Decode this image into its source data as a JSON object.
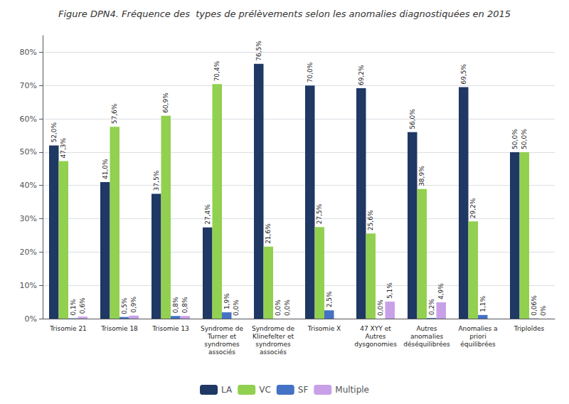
{
  "chart_data": {
    "type": "bar",
    "title": "Figure DPN4. Fréquence des  types de prélèvements selon les anomalies diagnostiquées en 2015",
    "categories": [
      "Trisomie 21",
      "Trisomie 18",
      "Trisomie 13",
      "Syndrome de\nTurner et\nsyndromes\nassociés",
      "Syndrome de\nKlinefelter et\nsyndromes\nassociés",
      "Trisomie X",
      "47 XYY et\nAutres\ndysgonomies",
      "Autres\nanomalies\ndéséquilibrées",
      "Anomalies a\npriori\néquilibrées",
      "Triploïdes"
    ],
    "series": [
      {
        "name": "LA",
        "color": "#1F3864",
        "values": [
          52.0,
          41.0,
          37.5,
          27.4,
          76.5,
          70.0,
          69.2,
          56.0,
          69.5,
          50.0
        ],
        "value_labels": [
          "52,0%",
          "41,0%",
          "37,5%",
          "27,4%",
          "76,5%",
          "70,0%",
          "69,2%",
          "56,0%",
          "69,5%",
          "50,0%"
        ]
      },
      {
        "name": "VC",
        "color": "#92D050",
        "values": [
          47.3,
          57.6,
          60.9,
          70.4,
          21.6,
          27.5,
          25.6,
          38.9,
          29.2,
          50.0
        ],
        "value_labels": [
          "47,3%",
          "57,6%",
          "60,9%",
          "70,4%",
          "21,6%",
          "27,5%",
          "25,6%",
          "38,9%",
          "29,2%",
          "50,0%"
        ]
      },
      {
        "name": "SF",
        "color": "#4472C4",
        "values": [
          0.1,
          0.5,
          0.8,
          1.9,
          0.0,
          2.5,
          0.0,
          0.2,
          1.1,
          0.06
        ],
        "value_labels": [
          "0,1%",
          "0,5%",
          "0,8%",
          "1,9%",
          "0,0%",
          "2,5%",
          "0,0%",
          "0,2%",
          "1,1%",
          "0,06%"
        ]
      },
      {
        "name": "Multiple",
        "color": "#C8A0E8",
        "values": [
          0.6,
          0.9,
          0.8,
          0.0,
          0.0,
          0.0,
          5.1,
          4.9,
          0.0,
          0.0
        ],
        "value_labels": [
          "0,6%",
          "0,9%",
          "0,8%",
          "0,0%",
          "0,0%",
          null,
          "5,1%",
          "4,9%",
          null,
          "0%"
        ]
      }
    ],
    "ylim": [
      0,
      85
    ],
    "yticks": [
      {
        "value": 0,
        "label": "0%"
      },
      {
        "value": 10,
        "label": "10%"
      },
      {
        "value": 20,
        "label": "20%"
      },
      {
        "value": 30,
        "label": "30%"
      },
      {
        "value": 40,
        "label": "40%"
      },
      {
        "value": 50,
        "label": "50%"
      },
      {
        "value": 60,
        "label": "60%"
      },
      {
        "value": 70,
        "label": "70%"
      },
      {
        "value": 80,
        "label": "80%"
      }
    ],
    "grid": true,
    "legend": "bottom",
    "data_labels": true
  }
}
